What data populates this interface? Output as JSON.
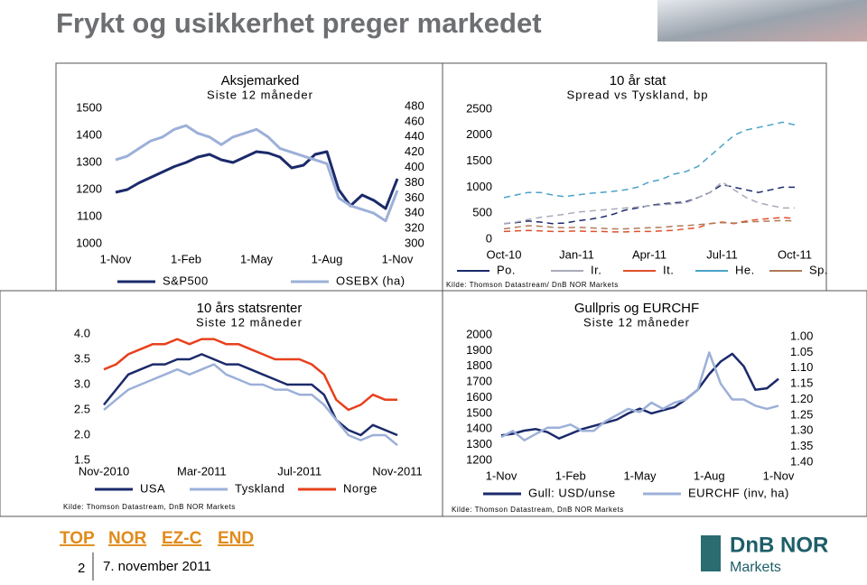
{
  "title": "Frykt og usikkerhet preger markedet",
  "nav": [
    "TOP",
    "NOR",
    "EZ-C",
    "END"
  ],
  "page_number": "2",
  "date": "7. november 2011",
  "logo": {
    "text": "DnB NOR",
    "sub": "Markets"
  },
  "chart_data": [
    {
      "type": "line",
      "title": "Aksjemarked",
      "subtitle": "Siste 12 måneder",
      "xlim": [
        0,
        24
      ],
      "xticks": [
        {
          "value": 0,
          "label": "1-Nov"
        },
        {
          "value": 6,
          "label": "1-Feb"
        },
        {
          "value": 12,
          "label": "1-May"
        },
        {
          "value": 18,
          "label": "1-Aug"
        },
        {
          "value": 24,
          "label": "1-Nov"
        }
      ],
      "ylim": [
        1000,
        1500
      ],
      "yticks": [
        1000,
        1100,
        1200,
        1300,
        1400,
        1500
      ],
      "y2lim": [
        300,
        480
      ],
      "y2ticks": [
        300,
        320,
        340,
        360,
        380,
        400,
        420,
        440,
        460,
        480
      ],
      "series": [
        {
          "name": "S&P500",
          "color": "#1b2a6b",
          "values": [
            1190,
            1200,
            1225,
            1245,
            1265,
            1285,
            1300,
            1320,
            1330,
            1310,
            1300,
            1320,
            1340,
            1335,
            1320,
            1280,
            1290,
            1330,
            1340,
            1200,
            1140,
            1180,
            1160,
            1130,
            1240
          ]
        },
        {
          "name": "OSEBX (ha)",
          "color": "#9cb0d8",
          "axis": "y2",
          "values": [
            410,
            415,
            425,
            435,
            440,
            450,
            455,
            445,
            440,
            430,
            440,
            445,
            450,
            440,
            425,
            420,
            415,
            410,
            405,
            360,
            350,
            345,
            340,
            330,
            370
          ]
        }
      ]
    },
    {
      "type": "line",
      "title": "10 år stat",
      "subtitle": "Spread vs Tyskland, bp",
      "dashed": true,
      "source": "Kilde: Thomson Datastream/ DnB NOR Markets",
      "xlim": [
        0,
        24
      ],
      "xticks": [
        {
          "value": 0,
          "label": "Oct-10"
        },
        {
          "value": 6,
          "label": "Jan-11"
        },
        {
          "value": 12,
          "label": "Apr-11"
        },
        {
          "value": 18,
          "label": "Jul-11"
        },
        {
          "value": 24,
          "label": "Oct-11"
        }
      ],
      "ylim": [
        0,
        2500
      ],
      "yticks": [
        0,
        500,
        1000,
        1500,
        2000,
        2500
      ],
      "series": [
        {
          "name": "Po.",
          "color": "#1b2a6b",
          "values": [
            300,
            320,
            350,
            330,
            300,
            310,
            350,
            380,
            420,
            480,
            560,
            600,
            650,
            680,
            700,
            720,
            800,
            900,
            1050,
            1000,
            950,
            900,
            950,
            1000,
            1000
          ]
        },
        {
          "name": "Ir.",
          "color": "#a8aab8",
          "values": [
            300,
            330,
            380,
            420,
            450,
            480,
            520,
            540,
            560,
            580,
            600,
            620,
            640,
            660,
            680,
            700,
            800,
            900,
            1100,
            950,
            800,
            700,
            650,
            600,
            600
          ]
        },
        {
          "name": "It.",
          "color": "#e0502a",
          "values": [
            150,
            160,
            170,
            160,
            150,
            150,
            160,
            150,
            150,
            140,
            140,
            150,
            150,
            160,
            170,
            200,
            220,
            300,
            330,
            300,
            350,
            380,
            400,
            420,
            400
          ]
        },
        {
          "name": "He.",
          "color": "#4aa3c8",
          "values": [
            800,
            850,
            900,
            900,
            850,
            820,
            850,
            880,
            900,
            920,
            950,
            1000,
            1100,
            1150,
            1250,
            1300,
            1400,
            1600,
            1800,
            2000,
            2100,
            2150,
            2200,
            2250,
            2200
          ]
        },
        {
          "name": "Sp.",
          "color": "#b07a58",
          "values": [
            200,
            230,
            260,
            250,
            230,
            220,
            230,
            220,
            210,
            200,
            200,
            210,
            220,
            230,
            250,
            260,
            280,
            300,
            320,
            310,
            330,
            340,
            350,
            360,
            350
          ]
        }
      ]
    },
    {
      "type": "line",
      "title": "10 års statsrenter",
      "subtitle": "Siste 12 måneder",
      "source": "Kilde: Thomson Datastream, DnB NOR Markets",
      "xlim": [
        0,
        24
      ],
      "xticks": [
        {
          "value": 0,
          "label": "Nov-2010"
        },
        {
          "value": 8,
          "label": "Mar-2011"
        },
        {
          "value": 16,
          "label": "Jul-2011"
        },
        {
          "value": 24,
          "label": "Nov-2011"
        }
      ],
      "ylim": [
        1.5,
        4.0
      ],
      "yticks": [
        1.5,
        {
          "value": 2.0,
          "label": "2.0"
        },
        2.5,
        {
          "value": 3.0,
          "label": "3.0"
        },
        3.5,
        {
          "value": 4.0,
          "label": "4.0"
        }
      ],
      "series": [
        {
          "name": "USA",
          "color": "#1b2a6b",
          "values": [
            2.6,
            2.9,
            3.2,
            3.3,
            3.4,
            3.4,
            3.5,
            3.5,
            3.6,
            3.5,
            3.4,
            3.4,
            3.3,
            3.2,
            3.1,
            3.0,
            3.0,
            3.0,
            2.8,
            2.3,
            2.1,
            2.0,
            2.2,
            2.1,
            2.0
          ]
        },
        {
          "name": "Tyskland",
          "color": "#9cb0d8",
          "values": [
            2.5,
            2.7,
            2.9,
            3.0,
            3.1,
            3.2,
            3.3,
            3.2,
            3.3,
            3.4,
            3.2,
            3.1,
            3.0,
            3.0,
            2.9,
            2.9,
            2.8,
            2.8,
            2.6,
            2.3,
            2.0,
            1.9,
            2.0,
            2.0,
            1.8
          ]
        },
        {
          "name": "Norge",
          "color": "#e8401c",
          "values": [
            3.3,
            3.4,
            3.6,
            3.7,
            3.8,
            3.8,
            3.9,
            3.8,
            3.9,
            3.9,
            3.8,
            3.8,
            3.7,
            3.6,
            3.5,
            3.5,
            3.5,
            3.4,
            3.2,
            2.7,
            2.5,
            2.6,
            2.8,
            2.7,
            2.7
          ]
        }
      ]
    },
    {
      "type": "line",
      "title": "Gullpris og EURCHF",
      "subtitle": "Siste 12 måneder",
      "source": "Kilde: Thomson Datastream, DnB NOR Markets",
      "xlim": [
        0,
        24
      ],
      "xticks": [
        {
          "value": 0,
          "label": "1-Nov"
        },
        {
          "value": 6,
          "label": "1-Feb"
        },
        {
          "value": 12,
          "label": "1-May"
        },
        {
          "value": 18,
          "label": "1-Aug"
        },
        {
          "value": 24,
          "label": "1-Nov"
        }
      ],
      "ylim": [
        1200,
        2000
      ],
      "yticks": [
        1200,
        1300,
        1400,
        1500,
        1600,
        1700,
        1800,
        1900,
        2000
      ],
      "y2lim": [
        1.4,
        1.0
      ],
      "y2ticks": [
        {
          "value": 1.0,
          "label": "1.00"
        },
        {
          "value": 1.05,
          "label": "1.05"
        },
        {
          "value": 1.1,
          "label": "1.10"
        },
        {
          "value": 1.15,
          "label": "1.15"
        },
        {
          "value": 1.2,
          "label": "1.20"
        },
        {
          "value": 1.25,
          "label": "1.25"
        },
        {
          "value": 1.3,
          "label": "1.30"
        },
        {
          "value": 1.35,
          "label": "1.35"
        },
        {
          "value": 1.4,
          "label": "1.40"
        }
      ],
      "series": [
        {
          "name": "Gull: USD/unse",
          "color": "#1b2a6b",
          "values": [
            1360,
            1370,
            1390,
            1400,
            1380,
            1340,
            1370,
            1400,
            1420,
            1440,
            1460,
            1500,
            1530,
            1500,
            1520,
            1540,
            1590,
            1650,
            1750,
            1830,
            1880,
            1800,
            1650,
            1660,
            1720
          ]
        },
        {
          "name": "EURCHF (inv, ha)",
          "color": "#9cb0d8",
          "axis": "y2",
          "values": [
            1.32,
            1.3,
            1.33,
            1.31,
            1.29,
            1.29,
            1.28,
            1.3,
            1.3,
            1.27,
            1.25,
            1.23,
            1.24,
            1.21,
            1.23,
            1.21,
            1.2,
            1.17,
            1.05,
            1.15,
            1.2,
            1.2,
            1.22,
            1.23,
            1.22
          ]
        }
      ]
    }
  ]
}
